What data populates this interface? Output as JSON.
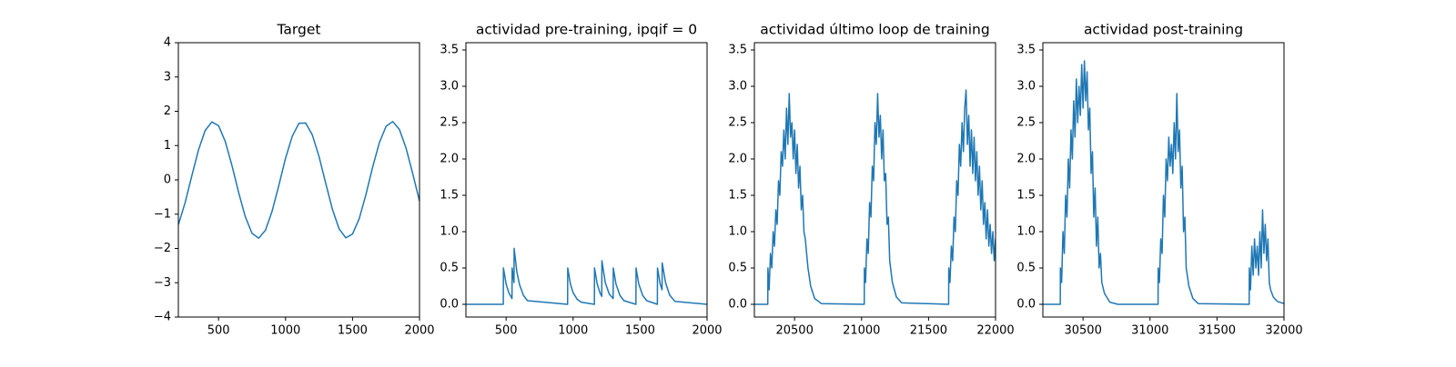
{
  "chart_data": [
    {
      "type": "line",
      "title": "Target",
      "color": "#1f77b4",
      "xlim": [
        200,
        2000
      ],
      "ylim": [
        -4,
        4
      ],
      "xticks": [
        500,
        1000,
        1500,
        2000
      ],
      "yticks": [
        {
          "value": -4,
          "label": "−4"
        },
        {
          "value": -3,
          "label": "−3"
        },
        {
          "value": -2,
          "label": "−2"
        },
        {
          "value": -1,
          "label": "−1"
        },
        0,
        1,
        2,
        3,
        4
      ],
      "x": [
        200,
        250,
        300,
        350,
        400,
        450,
        500,
        550,
        600,
        650,
        700,
        750,
        800,
        850,
        900,
        950,
        1000,
        1050,
        1100,
        1150,
        1200,
        1250,
        1300,
        1350,
        1400,
        1450,
        1500,
        1550,
        1600,
        1650,
        1700,
        1750,
        1800,
        1850,
        1900,
        1950,
        2000
      ],
      "values": [
        -1.31,
        -0.67,
        0.11,
        0.87,
        1.44,
        1.69,
        1.58,
        1.12,
        0.42,
        -0.37,
        -1.08,
        -1.56,
        -1.7,
        -1.47,
        -0.91,
        -0.16,
        0.63,
        1.27,
        1.65,
        1.66,
        1.31,
        0.68,
        -0.1,
        -0.86,
        -1.43,
        -1.69,
        -1.58,
        -1.13,
        -0.43,
        0.37,
        1.08,
        1.56,
        1.7,
        1.47,
        0.92,
        0.17,
        -0.62
      ]
    },
    {
      "type": "line",
      "title": "actividad pre-training, ipqif = 0",
      "color": "#1f77b4",
      "xlim": [
        200,
        2000
      ],
      "ylim": [
        -0.175,
        3.6
      ],
      "xticks": [
        500,
        1000,
        1500,
        2000
      ],
      "yticks": [
        {
          "value": 0,
          "label": "0.0"
        },
        0.5,
        {
          "value": 1,
          "label": "1.0"
        },
        1.5,
        {
          "value": 2,
          "label": "2.0"
        },
        2.5,
        {
          "value": 3,
          "label": "3.0"
        },
        3.5
      ],
      "x": [
        200,
        479,
        480,
        500,
        520,
        544,
        545,
        555,
        559,
        560,
        580,
        600,
        630,
        660,
        959,
        960,
        980,
        1000,
        1030,
        1060,
        1159,
        1160,
        1180,
        1200,
        1214,
        1215,
        1240,
        1270,
        1299,
        1300,
        1320,
        1350,
        1380,
        1469,
        1470,
        1490,
        1520,
        1550,
        1629,
        1630,
        1650,
        1664,
        1665,
        1690,
        1720,
        1760,
        2000
      ],
      "values": [
        0,
        0,
        0.5,
        0.28,
        0.16,
        0.08,
        0.5,
        0.35,
        0.3,
        0.77,
        0.45,
        0.27,
        0.12,
        0.05,
        0,
        0.5,
        0.28,
        0.16,
        0.07,
        0.03,
        0,
        0.5,
        0.28,
        0.16,
        0.11,
        0.6,
        0.3,
        0.14,
        0.08,
        0.5,
        0.28,
        0.12,
        0.05,
        0,
        0.5,
        0.28,
        0.12,
        0.05,
        0,
        0.5,
        0.28,
        0.2,
        0.57,
        0.3,
        0.13,
        0.04,
        0
      ]
    },
    {
      "type": "line",
      "title": "actividad último loop de training",
      "color": "#1f77b4",
      "xlim": [
        20200,
        22000
      ],
      "ylim": [
        -0.175,
        3.6
      ],
      "xticks": [
        20500,
        21000,
        21500,
        22000
      ],
      "yticks": [
        {
          "value": 0,
          "label": "0.0"
        },
        0.5,
        {
          "value": 1,
          "label": "1.0"
        },
        1.5,
        {
          "value": 2,
          "label": "2.0"
        },
        2.5,
        {
          "value": 3,
          "label": "3.0"
        },
        3.5
      ],
      "x": [
        20200,
        20300,
        20301,
        20310,
        20320,
        20330,
        20340,
        20350,
        20360,
        20370,
        20380,
        20390,
        20400,
        20410,
        20420,
        20430,
        20440,
        20450,
        20460,
        20470,
        20480,
        20490,
        20500,
        20510,
        20520,
        20530,
        20540,
        20550,
        20560,
        20570,
        20580,
        20600,
        20620,
        20650,
        20700,
        21020,
        21021,
        21030,
        21040,
        21050,
        21060,
        21070,
        21080,
        21090,
        21100,
        21110,
        21120,
        21130,
        21140,
        21150,
        21160,
        21170,
        21180,
        21190,
        21200,
        21210,
        21230,
        21260,
        21300,
        21650,
        21651,
        21660,
        21670,
        21680,
        21690,
        21700,
        21710,
        21720,
        21730,
        21740,
        21750,
        21760,
        21770,
        21780,
        21790,
        21800,
        21810,
        21820,
        21830,
        21840,
        21850,
        21860,
        21870,
        21880,
        21890,
        21900,
        21910,
        21920,
        21930,
        21940,
        21950,
        21960,
        21970,
        21980,
        21990,
        22000
      ],
      "values": [
        0,
        0,
        0.5,
        0.2,
        0.7,
        0.5,
        1.0,
        0.8,
        1.3,
        1.1,
        1.7,
        1.5,
        2.1,
        1.9,
        2.4,
        2.0,
        2.7,
        2.2,
        2.9,
        2.3,
        2.5,
        2.0,
        2.4,
        1.8,
        2.2,
        1.6,
        1.9,
        1.3,
        1.5,
        1.0,
        0.9,
        0.5,
        0.25,
        0.08,
        0.01,
        0,
        0.5,
        0.3,
        0.9,
        0.7,
        1.4,
        1.2,
        1.9,
        1.7,
        2.5,
        2.2,
        2.9,
        2.3,
        2.6,
        2.0,
        2.4,
        1.7,
        1.8,
        1.1,
        1.2,
        0.6,
        0.3,
        0.1,
        0.02,
        0,
        0.5,
        0.3,
        0.8,
        0.6,
        1.2,
        1.0,
        1.7,
        1.5,
        2.2,
        1.9,
        2.5,
        2.1,
        2.7,
        2.95,
        2.2,
        2.6,
        1.9,
        2.4,
        1.8,
        2.3,
        1.7,
        2.1,
        1.5,
        1.9,
        1.3,
        1.7,
        1.1,
        1.4,
        0.9,
        1.3,
        0.8,
        1.1,
        0.7,
        1.0,
        0.6,
        0.9
      ]
    },
    {
      "type": "line",
      "title": "actividad post-training",
      "color": "#1f77b4",
      "xlim": [
        30200,
        32000
      ],
      "ylim": [
        -0.175,
        3.6
      ],
      "xticks": [
        30500,
        31000,
        31500,
        32000
      ],
      "yticks": [
        {
          "value": 0,
          "label": "0.0"
        },
        0.5,
        {
          "value": 1,
          "label": "1.0"
        },
        1.5,
        {
          "value": 2,
          "label": "2.0"
        },
        2.5,
        {
          "value": 3,
          "label": "3.0"
        },
        3.5
      ],
      "x": [
        30200,
        30330,
        30331,
        30340,
        30350,
        30360,
        30370,
        30380,
        30390,
        30400,
        30410,
        30420,
        30430,
        30440,
        30450,
        30460,
        30470,
        30480,
        30490,
        30500,
        30510,
        30520,
        30530,
        30540,
        30550,
        30560,
        30570,
        30580,
        30590,
        30600,
        30610,
        30620,
        30630,
        30640,
        30660,
        30700,
        30760,
        31060,
        31061,
        31070,
        31080,
        31090,
        31100,
        31110,
        31120,
        31130,
        31140,
        31150,
        31160,
        31170,
        31180,
        31190,
        31200,
        31210,
        31220,
        31230,
        31240,
        31250,
        31260,
        31270,
        31290,
        31320,
        31360,
        31740,
        31741,
        31750,
        31760,
        31770,
        31780,
        31790,
        31800,
        31810,
        31820,
        31830,
        31840,
        31850,
        31860,
        31870,
        31880,
        31890,
        31900,
        31920,
        31950,
        32000
      ],
      "values": [
        0,
        0,
        0.5,
        0.3,
        1.0,
        0.7,
        1.5,
        1.2,
        2.0,
        1.6,
        2.4,
        2.0,
        2.8,
        2.3,
        3.1,
        2.5,
        3.0,
        2.6,
        3.3,
        2.7,
        3.35,
        2.8,
        3.2,
        2.4,
        2.7,
        1.8,
        2.1,
        1.2,
        1.6,
        0.8,
        1.2,
        0.5,
        0.7,
        0.3,
        0.15,
        0.03,
        0,
        0,
        0.5,
        0.3,
        0.9,
        0.7,
        1.5,
        1.2,
        2.0,
        1.7,
        2.3,
        1.9,
        2.2,
        1.8,
        2.5,
        2.0,
        2.9,
        2.1,
        2.4,
        1.6,
        1.9,
        1.0,
        1.2,
        0.5,
        0.25,
        0.08,
        0.01,
        0,
        0.5,
        0.2,
        0.8,
        0.4,
        0.9,
        0.5,
        0.8,
        0.4,
        1.0,
        0.5,
        1.3,
        0.7,
        1.1,
        0.6,
        0.9,
        0.3,
        0.2,
        0.1,
        0.04,
        0.01
      ]
    }
  ]
}
